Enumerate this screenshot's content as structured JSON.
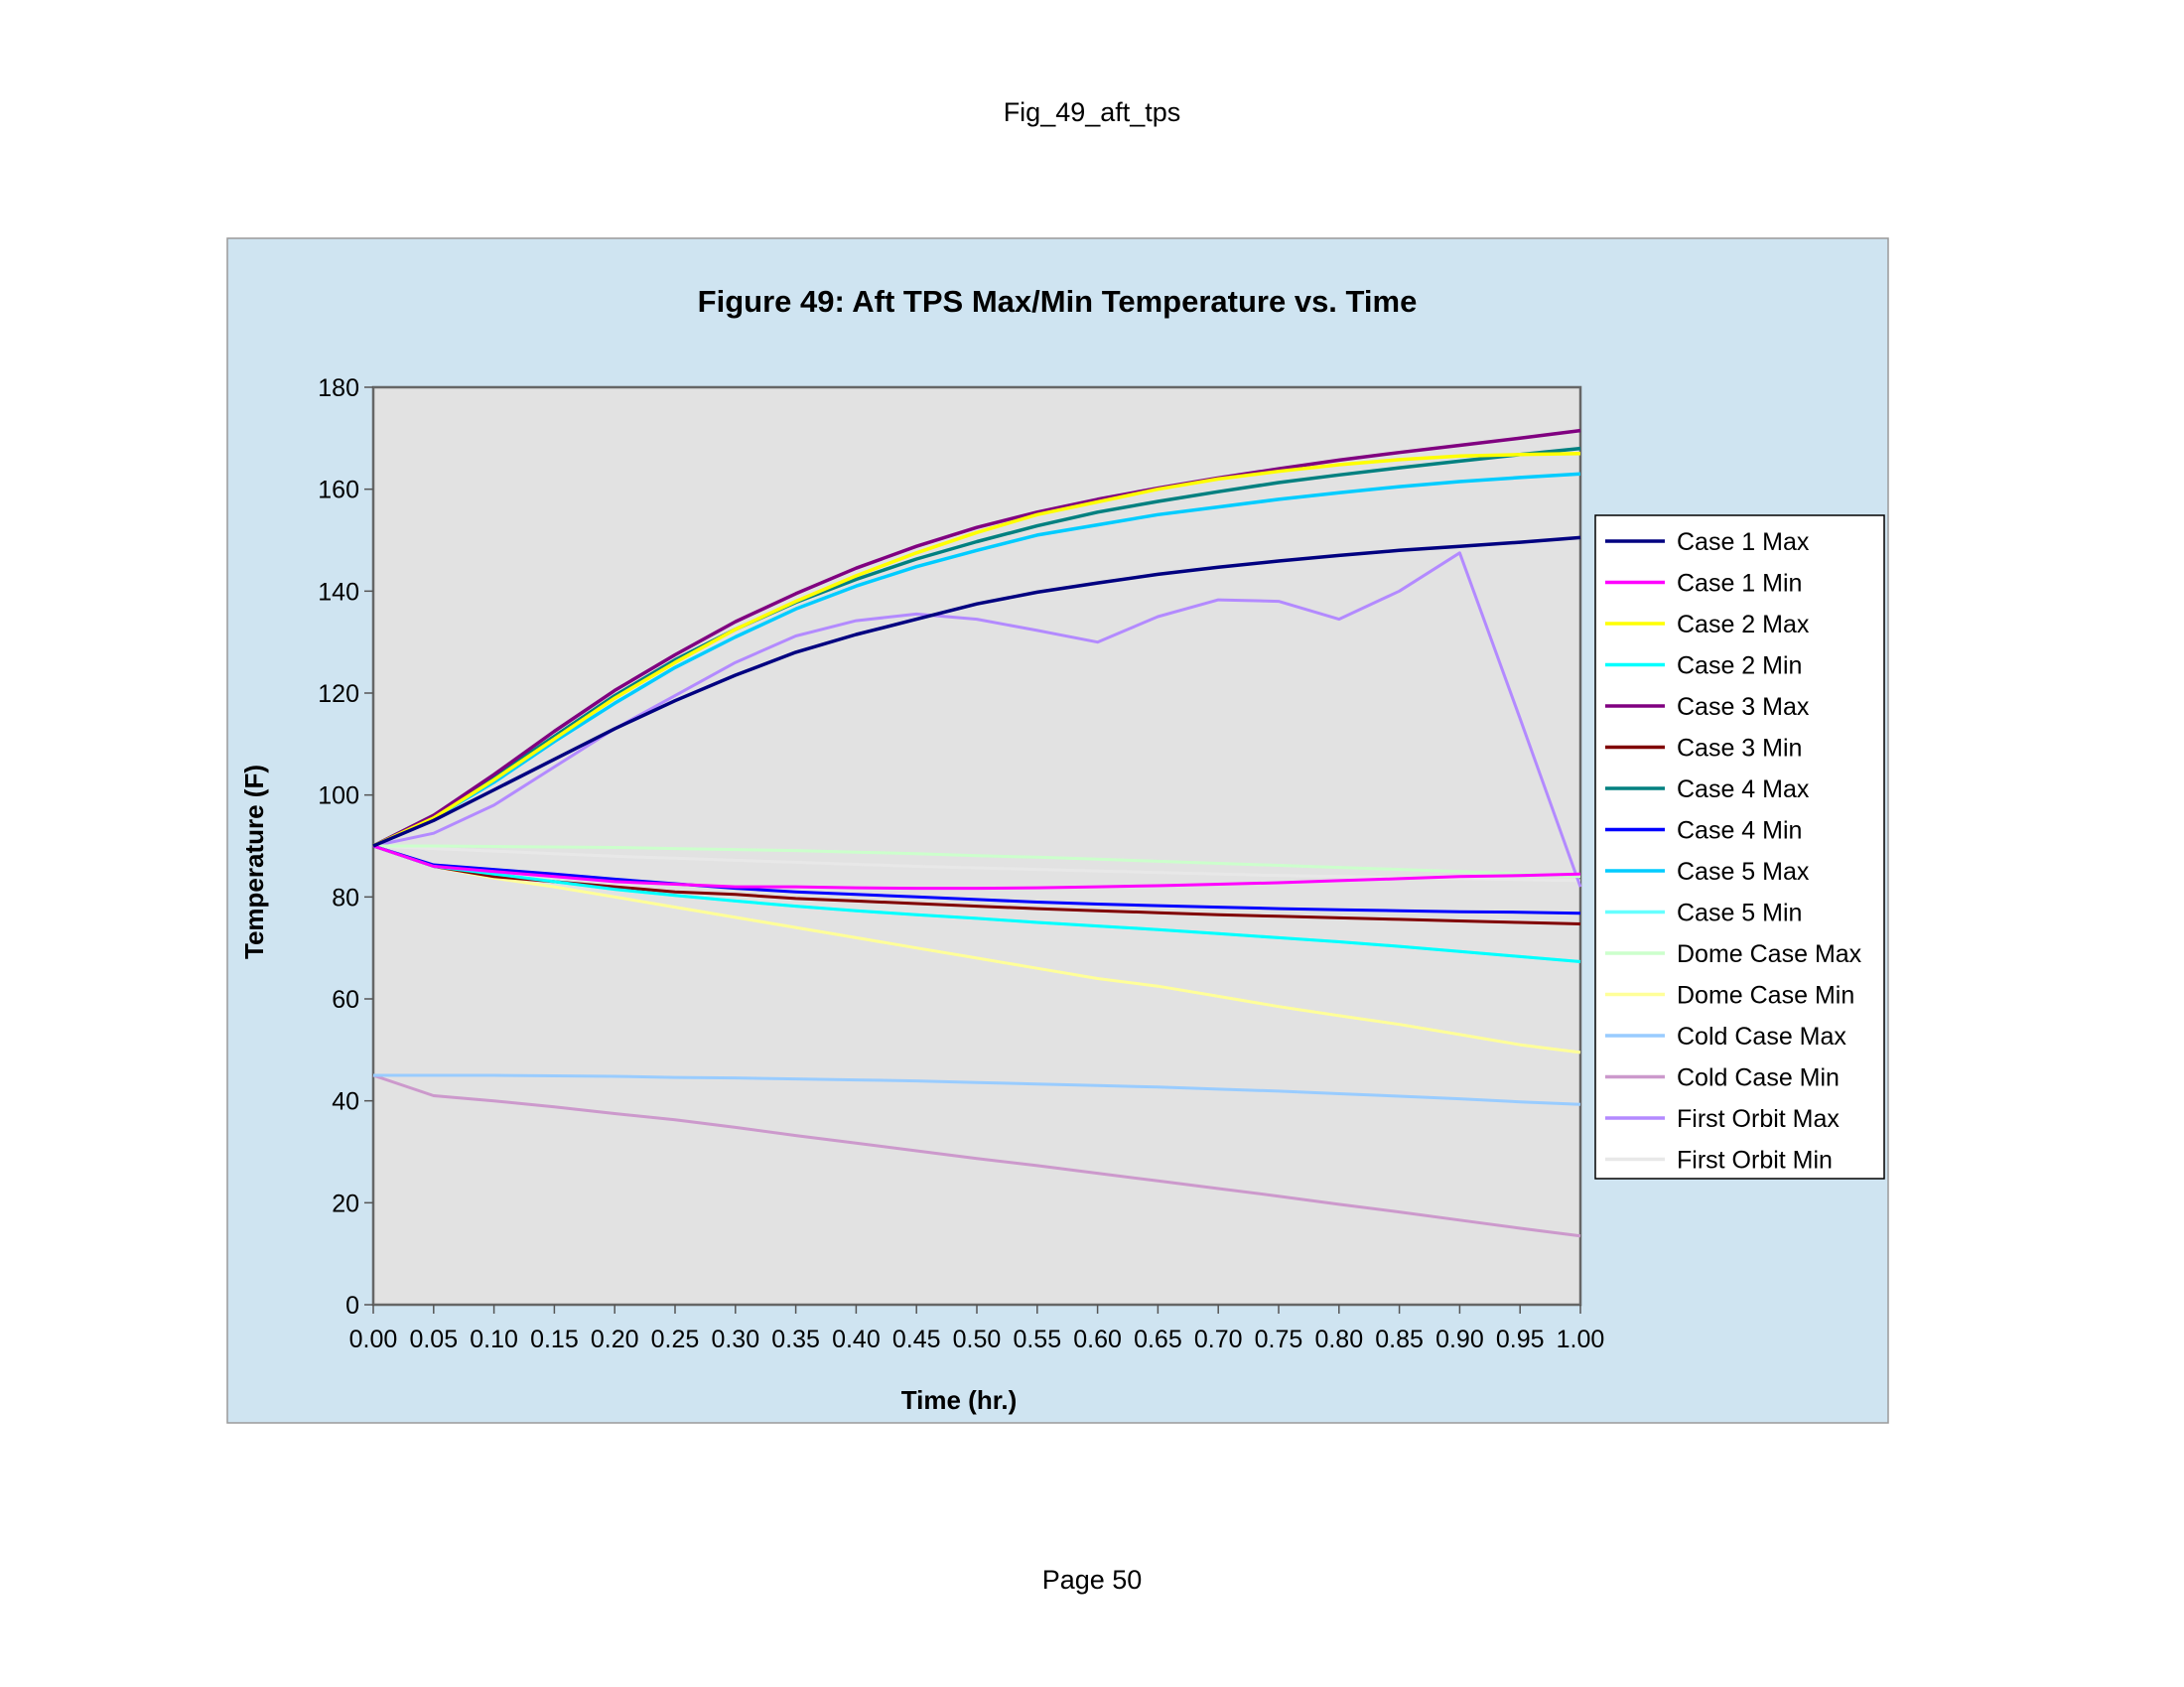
{
  "page": {
    "header": "Fig_49_aft_tps",
    "footer": "Page 50"
  },
  "colors": {
    "chart_background": "#cfe4f1",
    "plot_background": "#e2e2e2",
    "axis": "#555555"
  },
  "chart_data": {
    "type": "line",
    "title": "Figure 49: Aft TPS Max/Min Temperature vs. Time",
    "xlabel": "Time (hr.)",
    "ylabel": "Temperature (F)",
    "xlim": [
      0,
      1
    ],
    "ylim": [
      0,
      180
    ],
    "xticks": [
      "0.00",
      "0.05",
      "0.10",
      "0.15",
      "0.20",
      "0.25",
      "0.30",
      "0.35",
      "0.40",
      "0.45",
      "0.50",
      "0.55",
      "0.60",
      "0.65",
      "0.70",
      "0.75",
      "0.80",
      "0.85",
      "0.90",
      "0.95",
      "1.00"
    ],
    "yticks": [
      "0",
      "20",
      "40",
      "60",
      "80",
      "100",
      "120",
      "140",
      "160",
      "180"
    ],
    "grid": false,
    "legend_position": "right",
    "x": [
      0,
      0.05,
      0.1,
      0.15,
      0.2,
      0.25,
      0.3,
      0.35,
      0.4,
      0.45,
      0.5,
      0.55,
      0.6,
      0.65,
      0.7,
      0.75,
      0.8,
      0.85,
      0.9,
      0.95,
      1.0
    ],
    "series": [
      {
        "name": "Case 1 Max",
        "color": "#000080",
        "values": [
          90,
          95,
          101,
          107,
          113,
          118.5,
          123.5,
          128,
          131.5,
          134.5,
          137.5,
          139.8,
          141.6,
          143.3,
          144.7,
          145.9,
          147,
          148,
          148.8,
          149.6,
          150.5
        ]
      },
      {
        "name": "Case 1 Min",
        "color": "#ff00ff",
        "values": [
          90,
          86,
          85,
          84,
          83,
          82.5,
          82,
          82,
          81.8,
          81.7,
          81.7,
          81.8,
          82,
          82.2,
          82.5,
          82.8,
          83.2,
          83.6,
          84,
          84.2,
          84.5
        ]
      },
      {
        "name": "Case 2 Max",
        "color": "#ffff00",
        "values": [
          90,
          95.5,
          103,
          111,
          119,
          126,
          132.5,
          138,
          143,
          147.5,
          151.5,
          155,
          157.5,
          160,
          162,
          163.5,
          164.8,
          165.8,
          166.5,
          166.8,
          167
        ]
      },
      {
        "name": "Case 2 Min",
        "color": "#00ffff",
        "values": [
          90,
          86,
          84.5,
          83,
          81.5,
          80.3,
          79.2,
          78.2,
          77.3,
          76.5,
          75.8,
          75,
          74.3,
          73.6,
          72.8,
          72,
          71.2,
          70.3,
          69.3,
          68.3,
          67.3
        ]
      },
      {
        "name": "Case 3 Max",
        "color": "#800080",
        "values": [
          90,
          96,
          104,
          112.5,
          120.5,
          127.5,
          134,
          139.5,
          144.5,
          148.8,
          152.5,
          155.5,
          158,
          160.2,
          162.2,
          164,
          165.7,
          167.2,
          168.6,
          170,
          171.5
        ]
      },
      {
        "name": "Case 3 Min",
        "color": "#800000",
        "values": [
          90,
          86,
          84,
          83,
          82,
          81,
          80.5,
          79.7,
          79.2,
          78.7,
          78.2,
          77.7,
          77.3,
          76.9,
          76.5,
          76.2,
          75.9,
          75.6,
          75.3,
          75,
          74.7
        ]
      },
      {
        "name": "Case 4 Max",
        "color": "#008080",
        "values": [
          90,
          96,
          103.5,
          111.5,
          119.5,
          126.5,
          132.5,
          137.8,
          142.3,
          146.3,
          149.7,
          152.8,
          155.5,
          157.6,
          159.5,
          161.3,
          162.8,
          164.2,
          165.5,
          166.8,
          168
        ]
      },
      {
        "name": "Case 4 Min",
        "color": "#0000ff",
        "values": [
          90,
          86.3,
          85.4,
          84.5,
          83.5,
          82.6,
          81.7,
          81,
          80.5,
          80,
          79.5,
          79,
          78.6,
          78.3,
          78,
          77.7,
          77.5,
          77.3,
          77.1,
          77,
          76.8
        ]
      },
      {
        "name": "Case 5 Max",
        "color": "#00ccff",
        "values": [
          90,
          95.5,
          102.5,
          110.5,
          118,
          125,
          131,
          136.5,
          141,
          144.8,
          148,
          151,
          153,
          155,
          156.5,
          158,
          159.3,
          160.5,
          161.5,
          162.3,
          163
        ]
      },
      {
        "name": "Case 5 Min",
        "color": "#66ffff",
        "values": [
          90,
          86,
          84.5,
          83,
          81.5,
          80.3,
          79.2,
          78.2,
          77.3,
          76.5,
          75.8,
          75,
          74.3,
          73.6,
          72.8,
          72,
          71.2,
          70.3,
          69.3,
          68.3,
          67.3
        ]
      },
      {
        "name": "Dome Case Max",
        "color": "#ccffcc",
        "values": [
          90,
          90,
          89.9,
          89.8,
          89.7,
          89.5,
          89.3,
          89.1,
          88.8,
          88.5,
          88.1,
          87.8,
          87.4,
          87,
          86.6,
          86.2,
          85.8,
          85.4,
          85,
          84.5,
          84
        ]
      },
      {
        "name": "Dome Case Min",
        "color": "#ffff99",
        "values": [
          90,
          86,
          83.7,
          82,
          80,
          78,
          76,
          74,
          72,
          70,
          68,
          66,
          64,
          62.5,
          60.5,
          58.5,
          56.7,
          55,
          53,
          51,
          49.5
        ]
      },
      {
        "name": "Cold Case Max",
        "color": "#99ccff",
        "values": [
          45,
          45,
          45,
          44.9,
          44.8,
          44.6,
          44.5,
          44.3,
          44.1,
          43.9,
          43.6,
          43.3,
          43,
          42.7,
          42.3,
          41.9,
          41.4,
          40.9,
          40.4,
          39.8,
          39.3
        ]
      },
      {
        "name": "Cold Case Min",
        "color": "#cc99cc",
        "values": [
          45,
          41,
          40,
          38.8,
          37.5,
          36.3,
          34.8,
          33.2,
          31.7,
          30.2,
          28.7,
          27.3,
          25.8,
          24.3,
          22.8,
          21.3,
          19.7,
          18.2,
          16.6,
          15,
          13.5
        ]
      },
      {
        "name": "First Orbit Max",
        "color": "#b38aff",
        "values": [
          90,
          92.5,
          98,
          105.5,
          113,
          119.5,
          126,
          131.2,
          134.2,
          135.5,
          134.5,
          132.3,
          130,
          135,
          138.3,
          138,
          134.5,
          140,
          147.5,
          115,
          82
        ]
      },
      {
        "name": "First Orbit Min",
        "color": "#e8e8e8",
        "values": [
          90,
          89.5,
          89,
          88.5,
          88,
          87.6,
          87.2,
          86.8,
          86.4,
          86,
          85.7,
          85.4,
          85.1,
          84.8,
          84.5,
          84.2,
          84,
          83.8,
          83.6,
          83.4,
          83.2
        ]
      }
    ]
  }
}
